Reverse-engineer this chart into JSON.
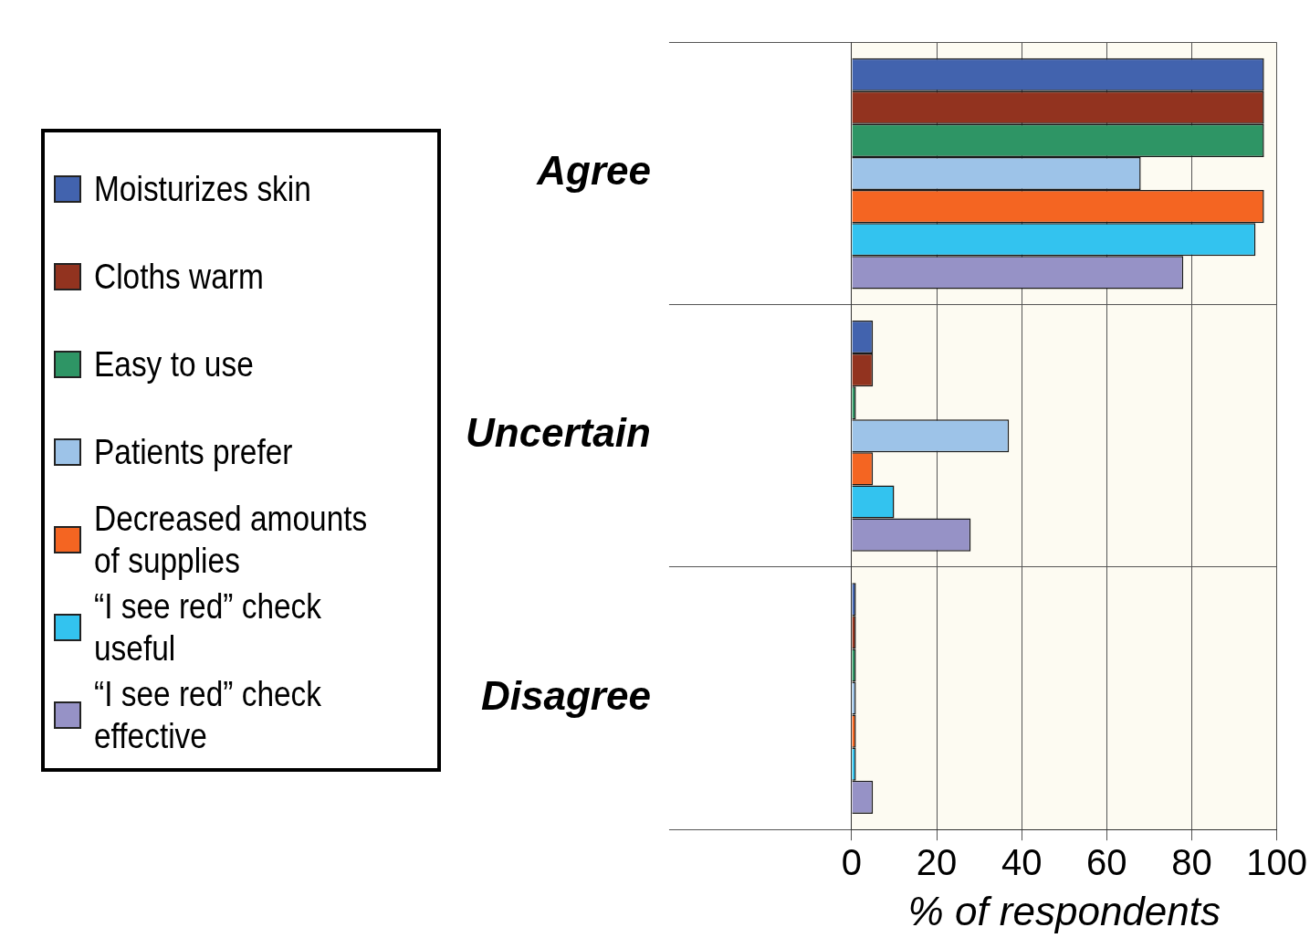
{
  "chart_data": {
    "type": "bar",
    "orientation": "horizontal",
    "xlabel": "% of respondents",
    "categories": [
      "Agree",
      "Uncertain",
      "Disagree"
    ],
    "series": [
      {
        "name": "Moisturizes skin",
        "color": "#4263ae",
        "values": [
          97,
          5,
          1
        ]
      },
      {
        "name": "Cloths warm",
        "color": "#92331f",
        "values": [
          97,
          5,
          1
        ]
      },
      {
        "name": "Easy to use",
        "color": "#2e9565",
        "values": [
          97,
          1,
          1
        ]
      },
      {
        "name": "Patients prefer",
        "color": "#9dc3e8",
        "values": [
          68,
          37,
          1
        ]
      },
      {
        "name": "Decreased amounts of supplies",
        "color": "#f46522",
        "values": [
          97,
          5,
          1
        ]
      },
      {
        "name": "“I see red” check useful",
        "color": "#33c3ef",
        "values": [
          95,
          10,
          1
        ]
      },
      {
        "name": "“I see red” check effective",
        "color": "#9692c6",
        "values": [
          78,
          28,
          5
        ]
      }
    ],
    "xlim": [
      0,
      100
    ],
    "xticks": [
      0,
      20,
      40,
      60,
      80,
      100
    ],
    "grid": true,
    "legend": "left"
  }
}
